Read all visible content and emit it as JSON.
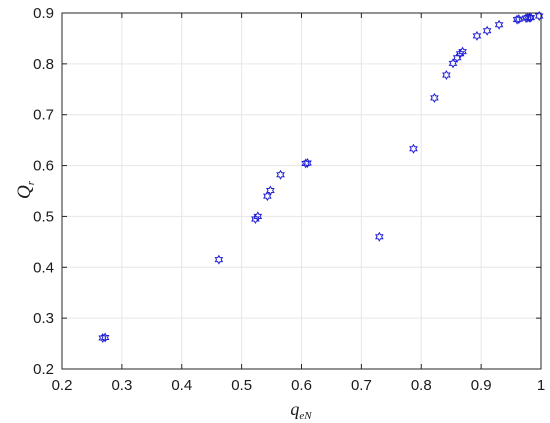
{
  "chart_data": {
    "type": "scatter",
    "title": "",
    "xlabel": {
      "main": "q",
      "sub": "eN"
    },
    "ylabel": {
      "main": "Q",
      "sub": "r"
    },
    "xlim": [
      0.2,
      1.0
    ],
    "ylim": [
      0.2,
      0.9
    ],
    "xticks": [
      0.2,
      0.3,
      0.4,
      0.5,
      0.6,
      0.7,
      0.8,
      0.9,
      1.0
    ],
    "yticks": [
      0.2,
      0.3,
      0.4,
      0.5,
      0.6,
      0.7,
      0.8,
      0.9
    ],
    "xtick_labels": [
      "0.2",
      "0.3",
      "0.4",
      "0.5",
      "0.6",
      "0.7",
      "0.8",
      "0.9",
      "1"
    ],
    "ytick_labels": [
      "0.2",
      "0.3",
      "0.4",
      "0.5",
      "0.6",
      "0.7",
      "0.8",
      "0.9"
    ],
    "grid": true,
    "marker": "hexagram",
    "marker_color": "#1f1fd6",
    "series": [
      {
        "points": [
          [
            0.268,
            0.261
          ],
          [
            0.272,
            0.262
          ],
          [
            0.462,
            0.415
          ],
          [
            0.523,
            0.495
          ],
          [
            0.527,
            0.5
          ],
          [
            0.543,
            0.54
          ],
          [
            0.548,
            0.551
          ],
          [
            0.565,
            0.582
          ],
          [
            0.607,
            0.604
          ],
          [
            0.61,
            0.605
          ],
          [
            0.73,
            0.46
          ],
          [
            0.787,
            0.633
          ],
          [
            0.822,
            0.733
          ],
          [
            0.842,
            0.778
          ],
          [
            0.853,
            0.801
          ],
          [
            0.86,
            0.812
          ],
          [
            0.865,
            0.82
          ],
          [
            0.869,
            0.824
          ],
          [
            0.893,
            0.855
          ],
          [
            0.91,
            0.865
          ],
          [
            0.93,
            0.877
          ],
          [
            0.96,
            0.887
          ],
          [
            0.963,
            0.888
          ],
          [
            0.975,
            0.89
          ],
          [
            0.978,
            0.891
          ],
          [
            0.981,
            0.891
          ],
          [
            0.983,
            0.891
          ],
          [
            0.997,
            0.894
          ]
        ]
      }
    ]
  }
}
